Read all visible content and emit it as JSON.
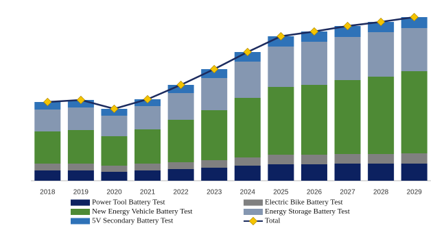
{
  "chart_data": {
    "type": "stacked-bar-line",
    "categories": [
      "2018",
      "2019",
      "2020",
      "2021",
      "2022",
      "2023",
      "2024",
      "2025",
      "2026",
      "2027",
      "2028",
      "2029"
    ],
    "series": [
      {
        "name": "Power Tool Battery Test",
        "color": "#0c2160",
        "values": [
          15,
          15,
          13,
          15,
          17,
          19,
          22,
          24,
          24,
          25,
          25,
          25
        ]
      },
      {
        "name": "Electric Bike Battery Test",
        "color": "#808080",
        "values": [
          10,
          10,
          9,
          10,
          10,
          11,
          12,
          14,
          14,
          14,
          14,
          15
        ]
      },
      {
        "name": "New Energy Vehicle Battery Test",
        "color": "#4e8a35",
        "values": [
          47,
          49,
          43,
          50,
          62,
          73,
          87,
          99,
          102,
          108,
          113,
          120
        ]
      },
      {
        "name": "Energy Storage Battery Test",
        "color": "#8597b1",
        "values": [
          32,
          33,
          30,
          34,
          39,
          47,
          53,
          59,
          63,
          63,
          65,
          63
        ]
      },
      {
        "name": "5V Secondary Battery Test",
        "color": "#2e72b8",
        "values": [
          11,
          11,
          10,
          10,
          12,
          13,
          14,
          15,
          15,
          16,
          15,
          16
        ]
      }
    ],
    "line": {
      "name": "Total",
      "color": "#1c2b5e",
      "marker_color": "#f5c400",
      "values": [
        115,
        118,
        105,
        119,
        140,
        163,
        188,
        211,
        218,
        226,
        232,
        239
      ]
    }
  }
}
